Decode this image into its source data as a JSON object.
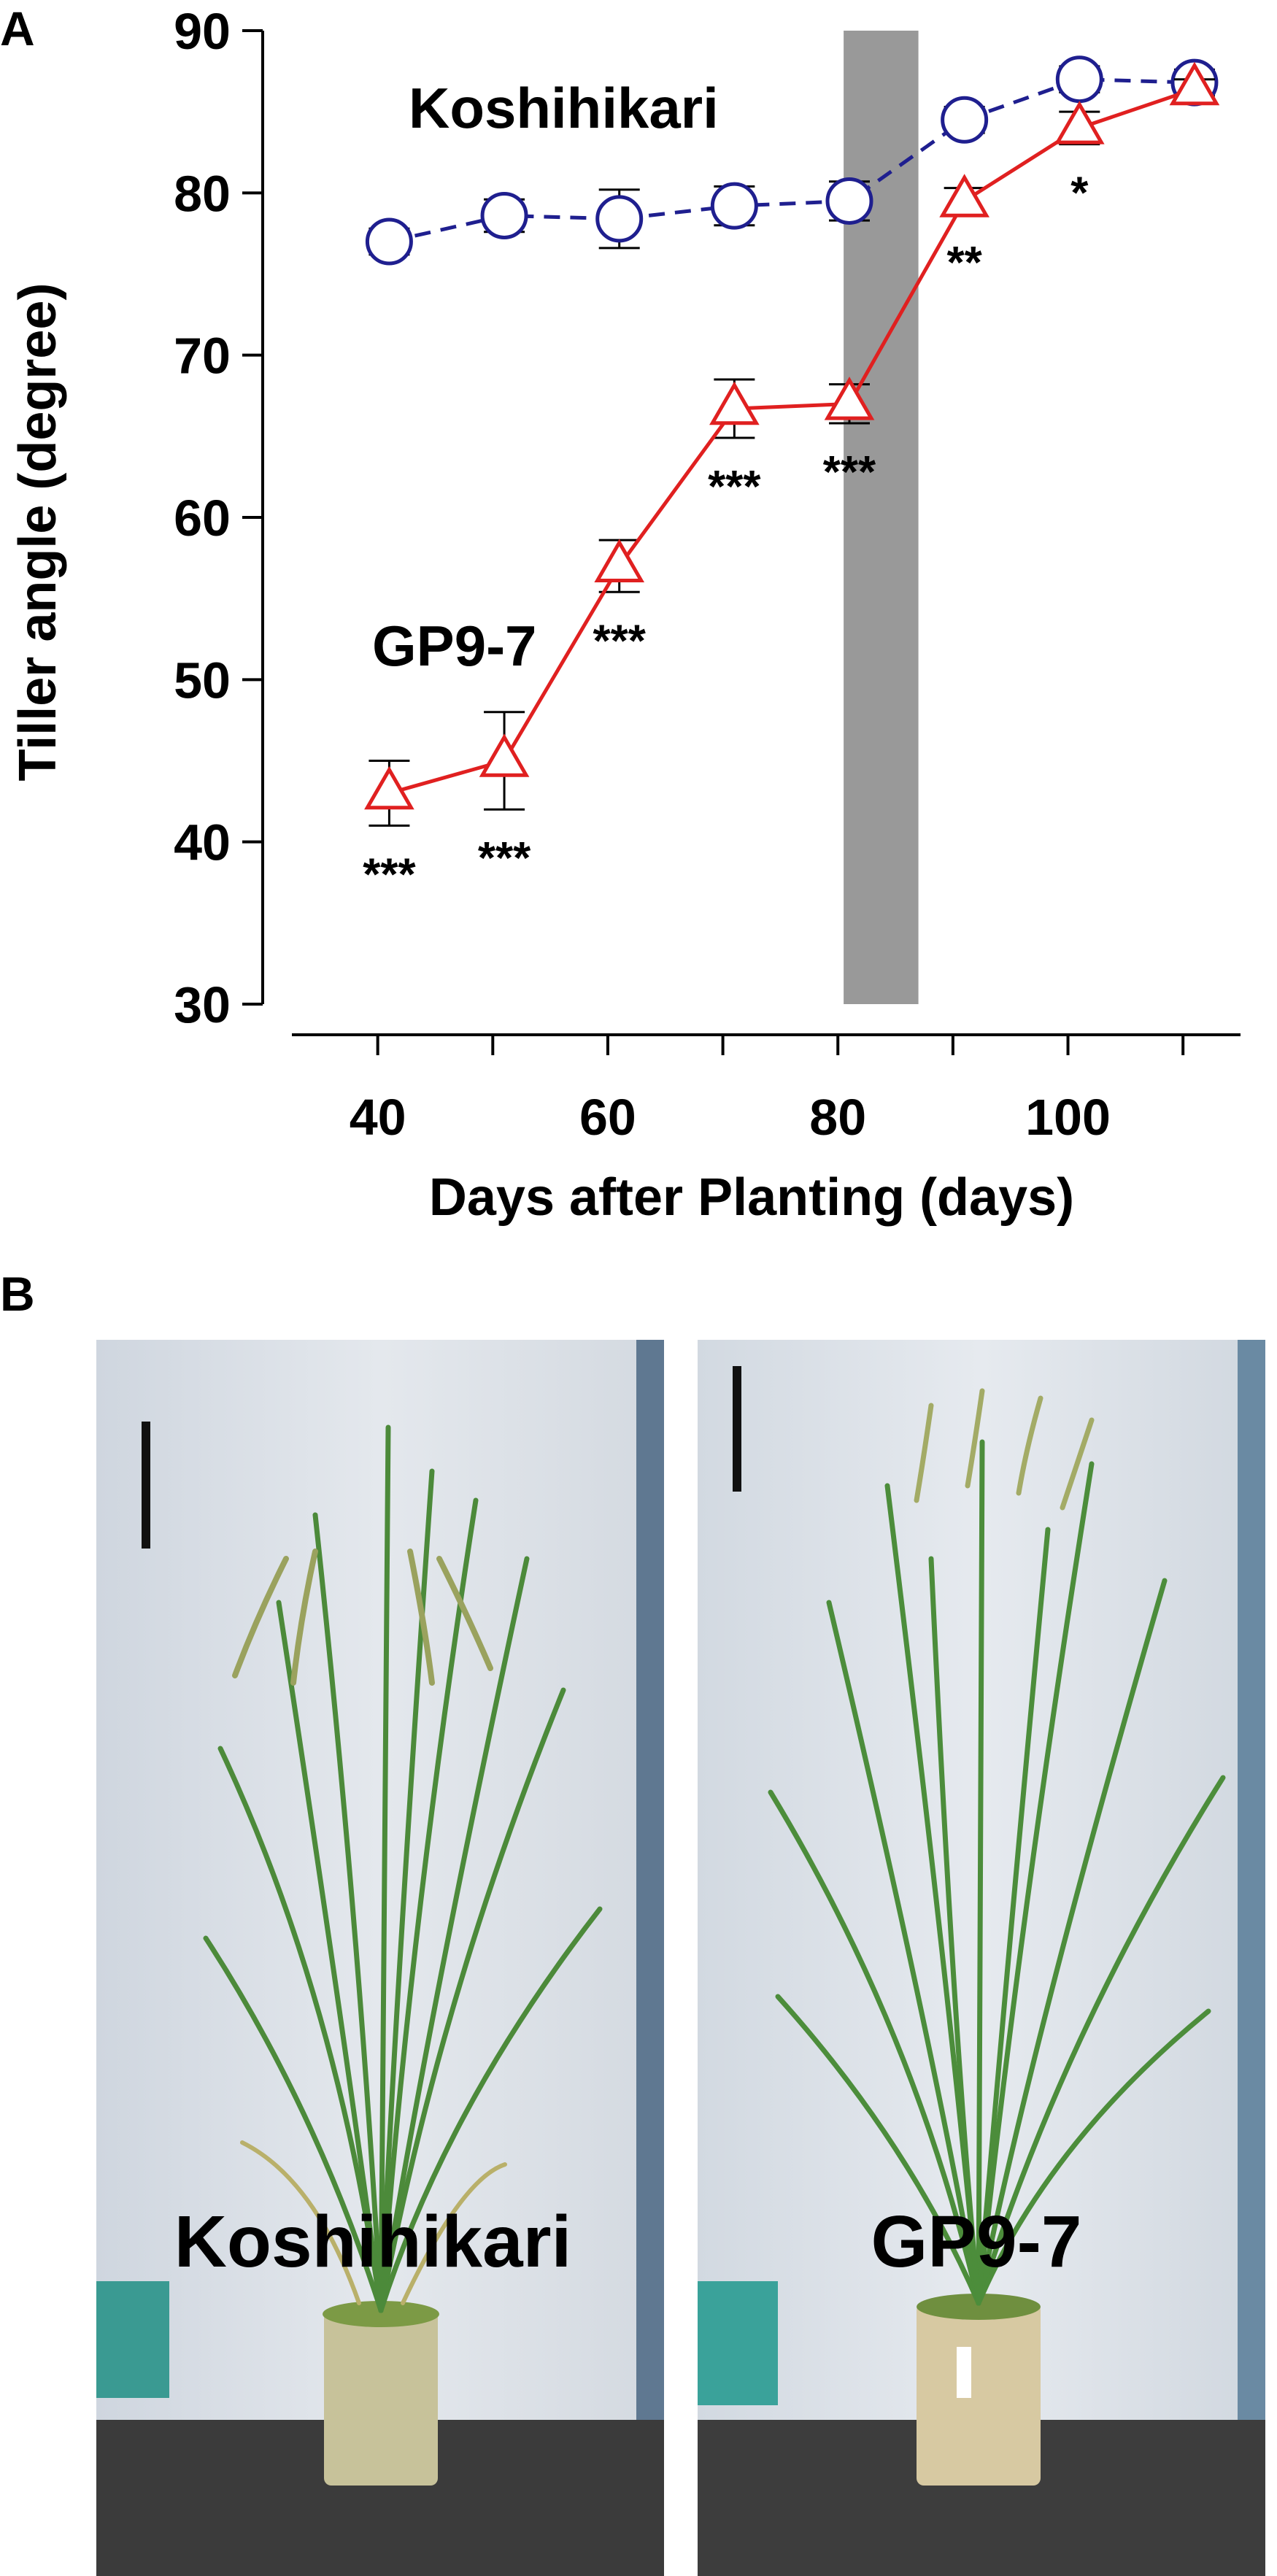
{
  "panels": {
    "a_label": "A",
    "b_label": "B"
  },
  "chart_data": {
    "type": "line",
    "title": "",
    "xlabel": "Days after Planting (days)",
    "ylabel": "Tiller angle (degree)",
    "xlim": [
      30,
      115
    ],
    "ylim": [
      30,
      90
    ],
    "x_ticks": [
      40,
      60,
      80,
      100
    ],
    "y_ticks": [
      30,
      40,
      50,
      60,
      70,
      80,
      90
    ],
    "grid": false,
    "shaded_region": {
      "x_range": [
        80.5,
        87
      ],
      "color": "#999999"
    },
    "series": [
      {
        "name": "Koshihikari",
        "line_style": "dashed",
        "marker": "circle",
        "color": "#1f1f8f",
        "x": [
          41,
          51,
          61,
          71,
          81,
          91,
          101,
          111
        ],
        "y": [
          77.0,
          78.6,
          78.4,
          79.2,
          79.5,
          84.5,
          87.0,
          86.8
        ],
        "error": [
          0.8,
          1.0,
          1.8,
          1.2,
          1.2,
          0.8,
          0.8,
          0.8
        ]
      },
      {
        "name": "GP9-7",
        "line_style": "solid",
        "marker": "triangle",
        "color": "#e02020",
        "x": [
          41,
          51,
          61,
          71,
          81,
          91,
          101,
          111
        ],
        "y": [
          43.0,
          45.0,
          57.0,
          66.7,
          67.0,
          79.5,
          84.0,
          86.4
        ],
        "error": [
          2.0,
          3.0,
          1.6,
          1.8,
          1.2,
          0.8,
          1.0,
          0.6
        ],
        "significance": [
          "***",
          "***",
          "***",
          "***",
          "***",
          "**",
          "*",
          ""
        ]
      }
    ]
  },
  "photos": [
    {
      "caption": "Koshihikari"
    },
    {
      "caption": "GP9-7"
    }
  ]
}
